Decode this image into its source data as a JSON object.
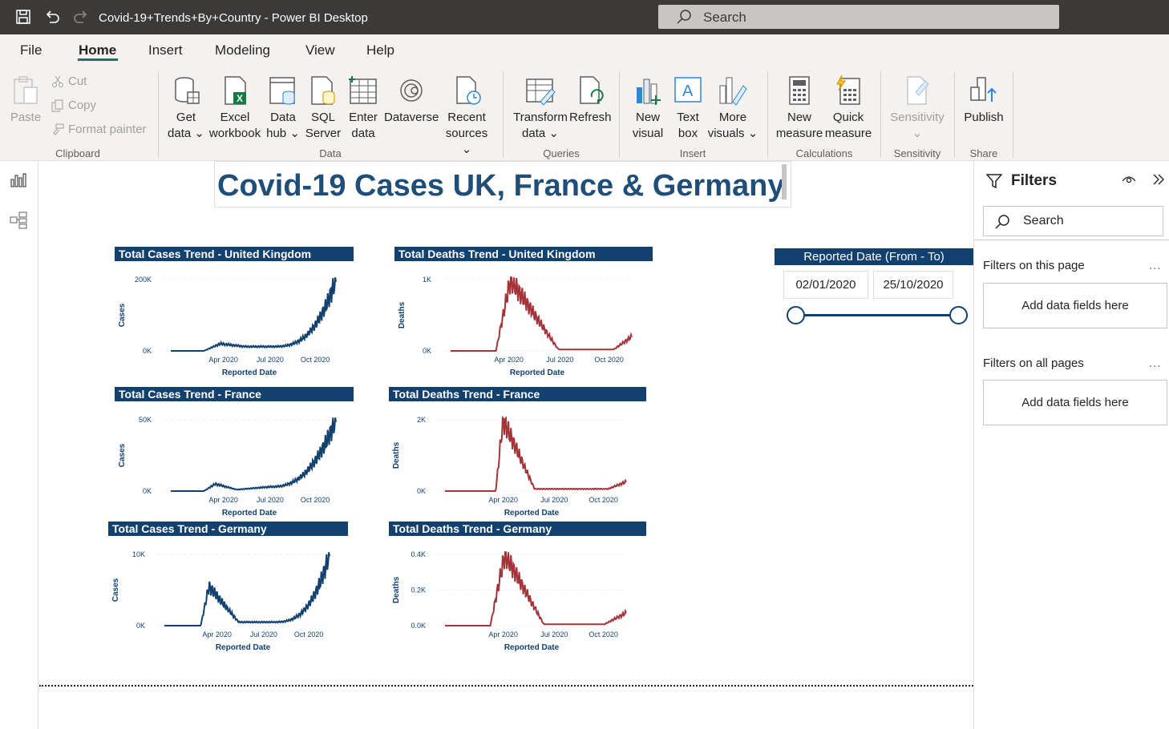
{
  "window": {
    "title": "Covid-19+Trends+By+Country - Power BI Desktop"
  },
  "search": {
    "placeholder": "Search"
  },
  "menu": [
    "File",
    "Home",
    "Insert",
    "Modeling",
    "View",
    "Help"
  ],
  "ribbon": {
    "clipboard": {
      "paste": "Paste",
      "cut": "Cut",
      "copy": "Copy",
      "format_painter": "Format painter",
      "group": "Clipboard"
    },
    "data": {
      "get_data": [
        "Get",
        "data"
      ],
      "excel": [
        "Excel",
        "workbook"
      ],
      "data_hub": [
        "Data",
        "hub"
      ],
      "sql": [
        "SQL",
        "Server"
      ],
      "enter": [
        "Enter",
        "data"
      ],
      "dataverse": [
        "Dataverse"
      ],
      "recent": [
        "Recent",
        "sources"
      ],
      "group": "Data"
    },
    "queries": {
      "transform": [
        "Transform",
        "data"
      ],
      "refresh": [
        "Refresh"
      ],
      "group": "Queries"
    },
    "insert": {
      "new_visual": [
        "New",
        "visual"
      ],
      "text_box": [
        "Text",
        "box"
      ],
      "more_visuals": [
        "More",
        "visuals"
      ],
      "group": "Insert"
    },
    "calculations": {
      "new_measure": [
        "New",
        "measure"
      ],
      "quick_measure": [
        "Quick",
        "measure"
      ],
      "group": "Calculations"
    },
    "sensitivity": {
      "label": "Sensitivity",
      "group": "Sensitivity"
    },
    "share": {
      "publish": "Publish",
      "group": "Share"
    }
  },
  "report": {
    "title": "Covid-19 Cases UK, France & Germany",
    "charts": [
      {
        "header": "Total Cases Trend - United Kingdom",
        "ylabel": "Cases",
        "xlabel": "Reported Date",
        "yticks": [
          "200K",
          "0K"
        ],
        "xticks": [
          "Apr 2020",
          "Jul 2020",
          "Oct 2020"
        ]
      },
      {
        "header": "Total Deaths Trend - United Kingdom",
        "ylabel": "Deaths",
        "xlabel": "Reported Date",
        "yticks": [
          "1K",
          "0K"
        ],
        "xticks": [
          "Apr 2020",
          "Jul 2020",
          "Oct 2020"
        ]
      },
      {
        "header": "Total Cases Trend - France",
        "ylabel": "Cases",
        "xlabel": "Reported Date",
        "yticks": [
          "50K",
          "0K"
        ],
        "xticks": [
          "Apr 2020",
          "Jul 2020",
          "Oct 2020"
        ]
      },
      {
        "header": "Total Deaths Trend - France",
        "ylabel": "Deaths",
        "xlabel": "Reported Date",
        "yticks": [
          "2K",
          "0K"
        ],
        "xticks": [
          "Apr 2020",
          "Jul 2020",
          "Oct 2020"
        ]
      },
      {
        "header": "Total Cases Trend - Germany",
        "ylabel": "Cases",
        "xlabel": "Reported Date",
        "yticks": [
          "10K",
          "0K"
        ],
        "xticks": [
          "Apr 2020",
          "Jul 2020",
          "Oct 2020"
        ]
      },
      {
        "header": "Total Deaths Trend - Germany",
        "ylabel": "Deaths",
        "xlabel": "Reported Date",
        "yticks": [
          "0.4K",
          "0.2K",
          "0.0K"
        ],
        "xticks": [
          "Apr 2020",
          "Jul 2020",
          "Oct 2020"
        ]
      }
    ],
    "slicer": {
      "header": "Reported Date (From - To)",
      "from": "02/01/2020",
      "to": "25/10/2020"
    }
  },
  "filters": {
    "title": "Filters",
    "search_placeholder": "Search",
    "this_page": "Filters on this page",
    "all_pages": "Filters on all pages",
    "add_fields": "Add data fields here",
    "more": "..."
  },
  "colors": {
    "cases": "#12406f",
    "deaths": "#a4343a",
    "header": "#12406f",
    "title": "#1f4e79",
    "accent": "#117865"
  }
}
